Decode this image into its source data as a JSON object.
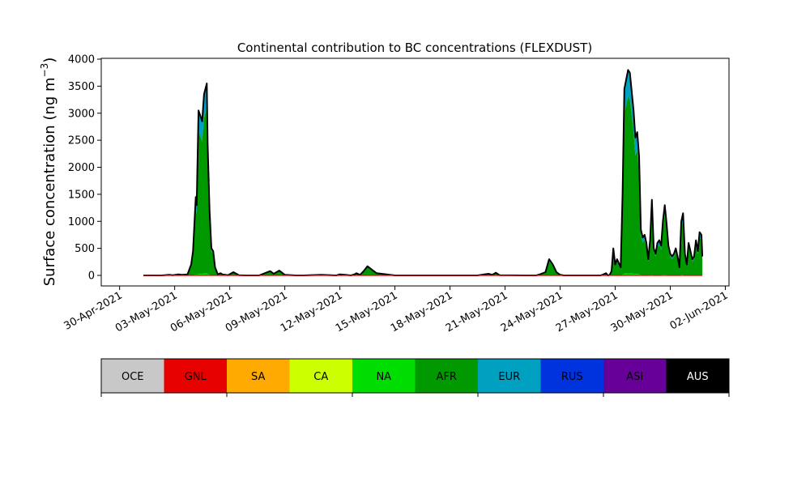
{
  "chart_data": {
    "type": "area",
    "title": "Continental contribution to BC concentrations (FLEXDUST)",
    "ylabel": "Surface concentration (ng m",
    "ylabel_sup": "−3",
    "ylabel_close": ")",
    "xlabel": "",
    "ylim": [
      0,
      4000
    ],
    "y_ticks": [
      0,
      500,
      1000,
      1500,
      2000,
      2500,
      3000,
      3500,
      4000
    ],
    "x_tick_labels": [
      "30-Apr-2021",
      "03-May-2021",
      "06-May-2021",
      "09-May-2021",
      "12-May-2021",
      "15-May-2021",
      "18-May-2021",
      "21-May-2021",
      "24-May-2021",
      "27-May-2021",
      "30-May-2021",
      "02-Jun-2021"
    ],
    "x_range_days": [
      -1.0,
      33.2
    ],
    "series": [
      {
        "name": "OCE",
        "color": "#c8c8c8"
      },
      {
        "name": "GNL",
        "color": "#e60000"
      },
      {
        "name": "SA",
        "color": "#ffaa00"
      },
      {
        "name": "CA",
        "color": "#ccff00"
      },
      {
        "name": "NA",
        "color": "#00dd00"
      },
      {
        "name": "AFR",
        "color": "#009900"
      },
      {
        "name": "EUR",
        "color": "#00a0c0"
      },
      {
        "name": "RUS",
        "color": "#0033dd"
      },
      {
        "name": "ASI",
        "color": "#660099"
      },
      {
        "name": "AUS",
        "color": "#000000"
      }
    ],
    "total": {
      "day": [
        1.3,
        2.3,
        2.7,
        2.9,
        3.2,
        3.4,
        3.7,
        3.9,
        4.0,
        4.15,
        4.2,
        4.3,
        4.4,
        4.5,
        4.6,
        4.75,
        4.8,
        4.9,
        5.0,
        5.1,
        5.2,
        5.35,
        5.5,
        5.6,
        5.9,
        6.2,
        6.5,
        6.9,
        7.2,
        7.6,
        8.2,
        8.4,
        8.7,
        9.0,
        9.6,
        10.0,
        11.0,
        11.8,
        12.0,
        12.3,
        12.6,
        12.8,
        12.9,
        13.1,
        13.3,
        13.5,
        14.0,
        15.0,
        16.0,
        19.5,
        20.1,
        20.3,
        20.5,
        20.7,
        22.0,
        22.7,
        22.9,
        23.2,
        23.4,
        23.6,
        23.8,
        24.0,
        24.2,
        24.5,
        24.8,
        25.0,
        25.2,
        25.4,
        25.6,
        25.7,
        25.9,
        26.1,
        26.2,
        26.3,
        26.5,
        26.6,
        26.7,
        26.8,
        26.9,
        27.0,
        27.1,
        27.3,
        27.4,
        27.5,
        27.7,
        27.8,
        28.0,
        28.1,
        28.2,
        28.3,
        28.4,
        28.5,
        28.6,
        28.7,
        28.8,
        28.9,
        29.0,
        29.1,
        29.2,
        29.3,
        29.4,
        29.5,
        29.6,
        29.7,
        29.8,
        29.9,
        30.0,
        30.1,
        30.2,
        30.3,
        30.4,
        30.5,
        30.6,
        30.7,
        30.8,
        30.9,
        31.0,
        31.1,
        31.2,
        31.3,
        31.4,
        31.5,
        31.6,
        31.7,
        31.75
      ],
      "value": [
        0,
        0,
        10,
        5,
        20,
        10,
        20,
        200,
        450,
        1450,
        1300,
        3050,
        2950,
        2850,
        3350,
        3550,
        2400,
        1200,
        500,
        450,
        150,
        20,
        40,
        20,
        5,
        60,
        5,
        0,
        0,
        0,
        80,
        30,
        90,
        10,
        0,
        0,
        10,
        0,
        20,
        10,
        0,
        20,
        40,
        10,
        80,
        170,
        40,
        0,
        0,
        0,
        30,
        10,
        50,
        5,
        0,
        0,
        20,
        60,
        300,
        200,
        60,
        10,
        0,
        0,
        0,
        0,
        0,
        0,
        0,
        0,
        0,
        0,
        0,
        10,
        40,
        0,
        10,
        80,
        500,
        200,
        300,
        150,
        1500,
        3450,
        3800,
        3750,
        3050,
        2550,
        2650,
        2200,
        850,
        700,
        750,
        600,
        300,
        650,
        1400,
        500,
        400,
        600,
        650,
        550,
        1000,
        1300,
        950,
        550,
        400,
        350,
        400,
        500,
        350,
        150,
        1000,
        1150,
        400,
        200,
        600,
        450,
        300,
        350,
        650,
        450,
        800,
        750,
        350
      ]
    }
  }
}
